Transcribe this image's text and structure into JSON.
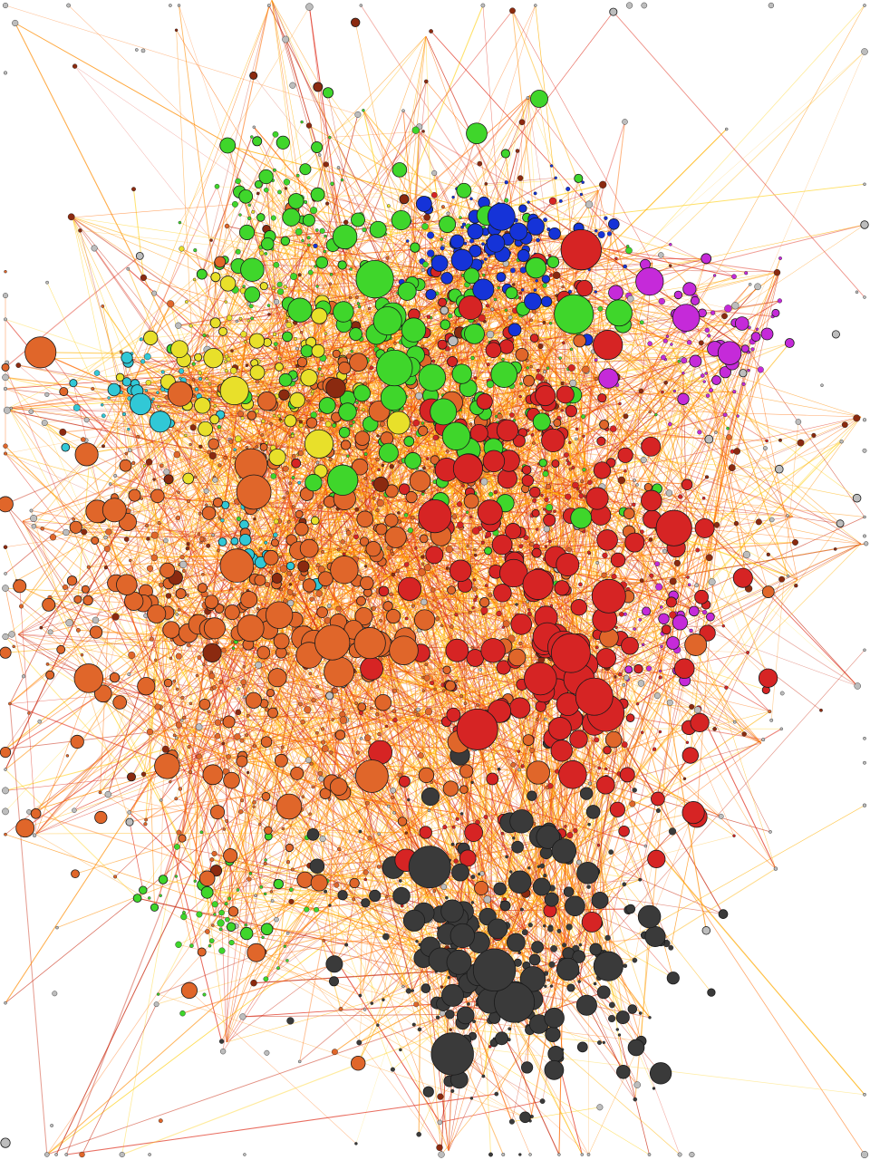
{
  "background_color": "#ffffff",
  "node_outline_color": "#1a1a1a",
  "edge_colors": [
    "#ff8c00",
    "#ffb000",
    "#ffd21f",
    "#e0301e",
    "#ff6a00",
    "#c92a10"
  ],
  "clusters": [
    {
      "name": "green-cluster",
      "color": "#3fd62b"
    },
    {
      "name": "blue-cluster",
      "color": "#1533d8"
    },
    {
      "name": "magenta-cluster",
      "color": "#c52ad9"
    },
    {
      "name": "yellow-cluster",
      "color": "#e8e02a"
    },
    {
      "name": "cyan-cluster",
      "color": "#31c8d6"
    },
    {
      "name": "orange-cluster",
      "color": "#e0662a"
    },
    {
      "name": "red-cluster",
      "color": "#d62424"
    },
    {
      "name": "dark-gray-cluster",
      "color": "#3a3a3a"
    },
    {
      "name": "brown-cluster",
      "color": "#8b2a10"
    },
    {
      "name": "light-gray-peripheral",
      "color": "#bdbdbd"
    }
  ]
}
